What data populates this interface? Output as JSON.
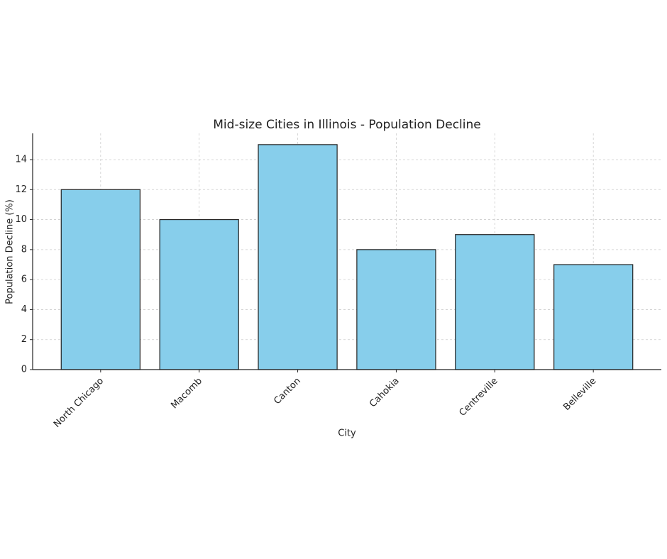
{
  "chart_data": {
    "type": "bar",
    "title": "Mid-size Cities in Illinois - Population Decline",
    "x_label": "City",
    "y_label": "Population Decline (%)",
    "categories": [
      "North Chicago",
      "Macomb",
      "Canton",
      "Cahokia",
      "Centreville",
      "Belleville"
    ],
    "values": [
      12,
      10,
      15,
      8,
      9,
      7
    ],
    "color": "#87ceeb",
    "edge_color": "#222222",
    "ylim": [
      0,
      15.75
    ],
    "yticks": [
      0,
      2,
      4,
      6,
      8,
      10,
      12,
      14
    ],
    "grid": true
  }
}
